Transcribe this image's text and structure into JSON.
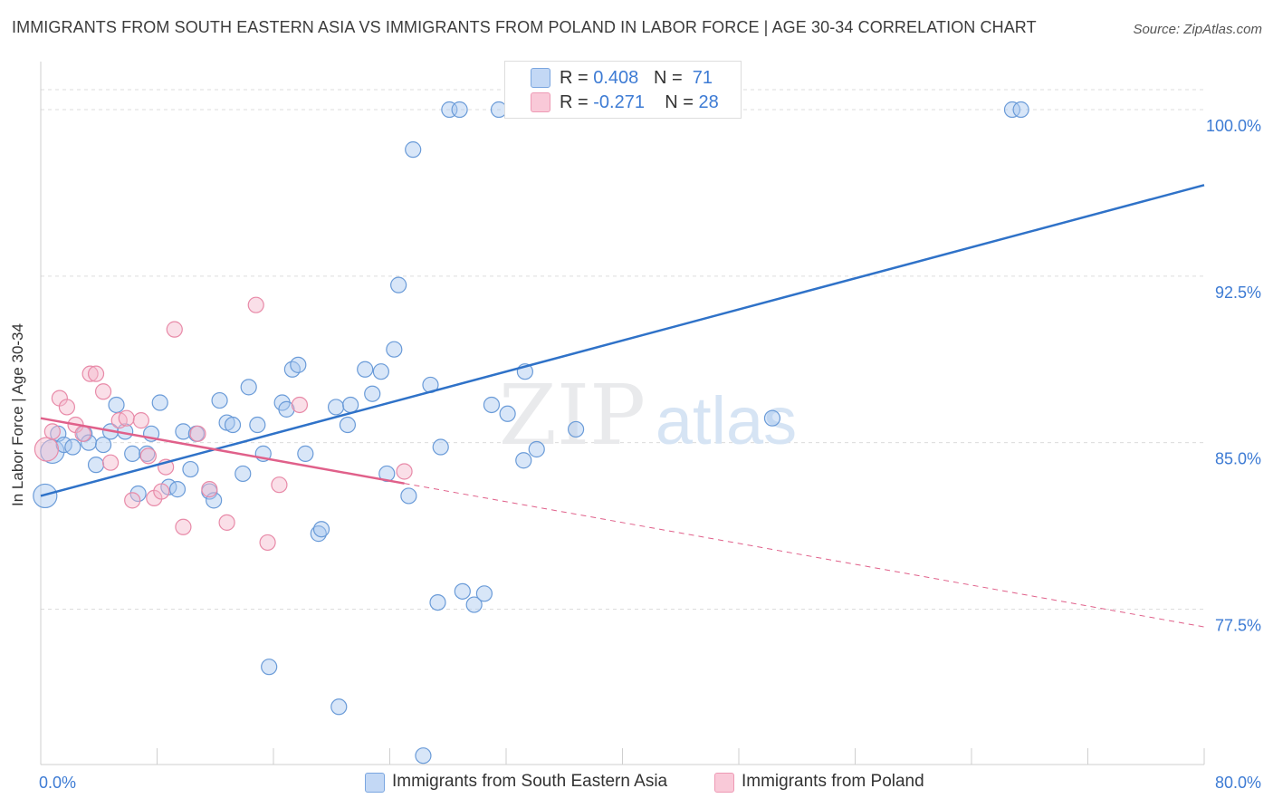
{
  "title": "IMMIGRANTS FROM SOUTH EASTERN ASIA VS IMMIGRANTS FROM POLAND IN LABOR FORCE | AGE 30-34 CORRELATION CHART",
  "source": "Source: ZipAtlas.com",
  "watermark": {
    "zip": "ZIP",
    "atlas": "atlas"
  },
  "colors": {
    "blue_fill": "#a8c8f0",
    "blue_stroke": "#6a9bd8",
    "blue_line": "#2f72c8",
    "pink_fill": "#f5b8cc",
    "pink_stroke": "#e88aa8",
    "pink_line": "#e0608a",
    "tick_text": "#3d7bd4",
    "grid": "#dcdcdc"
  },
  "legend_top": {
    "rows": [
      {
        "r_label": "R = ",
        "r_value": "0.408",
        "n_label": "N = ",
        "n_value": "71",
        "color": "blue"
      },
      {
        "r_label": "R = ",
        "r_value": "-0.271",
        "n_label": "N = ",
        "n_value": "28",
        "color": "pink"
      }
    ]
  },
  "legend_bottom": [
    {
      "label": "Immigrants from South Eastern Asia",
      "color": "blue"
    },
    {
      "label": "Immigrants from Poland",
      "color": "pink"
    }
  ],
  "chart_data": {
    "type": "scatter",
    "title": "IMMIGRANTS FROM SOUTH EASTERN ASIA VS IMMIGRANTS FROM POLAND IN LABOR FORCE | AGE 30-34 CORRELATION CHART",
    "xlabel": "",
    "ylabel": "In Labor Force | Age 30-34",
    "xlim": [
      0,
      80
    ],
    "ylim": [
      70.5,
      102
    ],
    "x_tick_labels": [
      "0.0%",
      "80.0%"
    ],
    "y_ticks": [
      77.5,
      85.0,
      92.5,
      100.0
    ],
    "y_tick_labels": [
      "77.5%",
      "85.0%",
      "92.5%",
      "100.0%"
    ],
    "grid": true,
    "legend_position": "top-center",
    "series": [
      {
        "name": "Immigrants from South Eastern Asia",
        "color": "blue",
        "R": 0.408,
        "N": 71,
        "trend": {
          "x": [
            0,
            80
          ],
          "y": [
            82.6,
            96.6
          ],
          "dashed_from": null
        },
        "points": [
          [
            0.3,
            82.6,
            2
          ],
          [
            0.8,
            84.6,
            2
          ],
          [
            1.2,
            85.4,
            1
          ],
          [
            1.6,
            84.9,
            1
          ],
          [
            2.2,
            84.8,
            1
          ],
          [
            3.0,
            85.4,
            1
          ],
          [
            3.3,
            85.0,
            1
          ],
          [
            3.8,
            84.0,
            1
          ],
          [
            4.3,
            84.9,
            1
          ],
          [
            4.8,
            85.5,
            1
          ],
          [
            5.2,
            86.7,
            1
          ],
          [
            5.8,
            85.5,
            1
          ],
          [
            6.3,
            84.5,
            1
          ],
          [
            6.7,
            82.7,
            1
          ],
          [
            7.6,
            85.4,
            1
          ],
          [
            8.2,
            86.8,
            1
          ],
          [
            8.8,
            83.0,
            1
          ],
          [
            7.3,
            84.5,
            1
          ],
          [
            9.4,
            82.9,
            1
          ],
          [
            9.8,
            85.5,
            1
          ],
          [
            10.3,
            83.8,
            1
          ],
          [
            10.7,
            85.4,
            1
          ],
          [
            11.6,
            82.8,
            1
          ],
          [
            11.9,
            82.4,
            1
          ],
          [
            12.3,
            86.9,
            1
          ],
          [
            12.8,
            85.9,
            1
          ],
          [
            13.2,
            85.8,
            1
          ],
          [
            13.9,
            83.6,
            1
          ],
          [
            14.3,
            87.5,
            1
          ],
          [
            14.9,
            85.8,
            1
          ],
          [
            15.3,
            84.5,
            1
          ],
          [
            15.7,
            74.9,
            1
          ],
          [
            16.6,
            86.8,
            1
          ],
          [
            16.9,
            86.5,
            1
          ],
          [
            17.3,
            88.3,
            1
          ],
          [
            17.7,
            88.5,
            1
          ],
          [
            18.2,
            84.5,
            1
          ],
          [
            19.1,
            80.9,
            1
          ],
          [
            19.3,
            81.1,
            1
          ],
          [
            20.3,
            86.6,
            1
          ],
          [
            20.5,
            73.1,
            1
          ],
          [
            21.1,
            85.8,
            1
          ],
          [
            21.3,
            86.7,
            1
          ],
          [
            22.3,
            88.3,
            1
          ],
          [
            22.8,
            87.2,
            1
          ],
          [
            23.4,
            88.2,
            1
          ],
          [
            23.8,
            83.6,
            1
          ],
          [
            24.3,
            89.2,
            1
          ],
          [
            24.6,
            92.1,
            1
          ],
          [
            25.3,
            82.6,
            1
          ],
          [
            25.6,
            98.2,
            1
          ],
          [
            26.3,
            70.9,
            1
          ],
          [
            26.8,
            87.6,
            1
          ],
          [
            27.3,
            77.8,
            1
          ],
          [
            27.5,
            84.8,
            1
          ],
          [
            28.1,
            100.0,
            1
          ],
          [
            28.8,
            100.0,
            1
          ],
          [
            29.0,
            78.3,
            1
          ],
          [
            29.8,
            77.7,
            1
          ],
          [
            30.5,
            78.2,
            1
          ],
          [
            31.0,
            86.7,
            1
          ],
          [
            31.5,
            100.0,
            1
          ],
          [
            32.1,
            86.3,
            1
          ],
          [
            33.2,
            84.2,
            1
          ],
          [
            33.3,
            88.2,
            1
          ],
          [
            34.1,
            84.7,
            1
          ],
          [
            36.8,
            85.6,
            1
          ],
          [
            43.0,
            100.0,
            1
          ],
          [
            50.3,
            86.1,
            1
          ],
          [
            66.8,
            100.0,
            1
          ],
          [
            67.4,
            100.0,
            1
          ]
        ]
      },
      {
        "name": "Immigrants from Poland",
        "color": "pink",
        "R": -0.271,
        "N": 28,
        "trend": {
          "x": [
            0,
            80
          ],
          "y": [
            86.1,
            76.7
          ],
          "solid_to_x": 25.0
        },
        "points": [
          [
            0.4,
            84.7,
            2
          ],
          [
            0.8,
            85.5,
            1
          ],
          [
            1.3,
            87.0,
            1
          ],
          [
            1.8,
            86.6,
            1
          ],
          [
            2.4,
            85.8,
            1
          ],
          [
            2.9,
            85.4,
            1
          ],
          [
            3.4,
            88.1,
            1
          ],
          [
            3.8,
            88.1,
            1
          ],
          [
            4.3,
            87.3,
            1
          ],
          [
            4.8,
            84.1,
            1
          ],
          [
            5.4,
            86.0,
            1
          ],
          [
            5.9,
            86.1,
            1
          ],
          [
            6.3,
            82.4,
            1
          ],
          [
            6.9,
            86.0,
            1
          ],
          [
            7.4,
            84.4,
            1
          ],
          [
            7.8,
            82.5,
            1
          ],
          [
            8.3,
            82.8,
            1
          ],
          [
            8.6,
            83.9,
            1
          ],
          [
            9.2,
            90.1,
            1
          ],
          [
            9.8,
            81.2,
            1
          ],
          [
            10.8,
            85.4,
            1
          ],
          [
            11.6,
            82.9,
            1
          ],
          [
            12.8,
            81.4,
            1
          ],
          [
            14.8,
            91.2,
            1
          ],
          [
            15.6,
            80.5,
            1
          ],
          [
            16.4,
            83.1,
            1
          ],
          [
            17.8,
            86.7,
            1
          ],
          [
            25.0,
            83.7,
            1
          ]
        ]
      }
    ]
  }
}
